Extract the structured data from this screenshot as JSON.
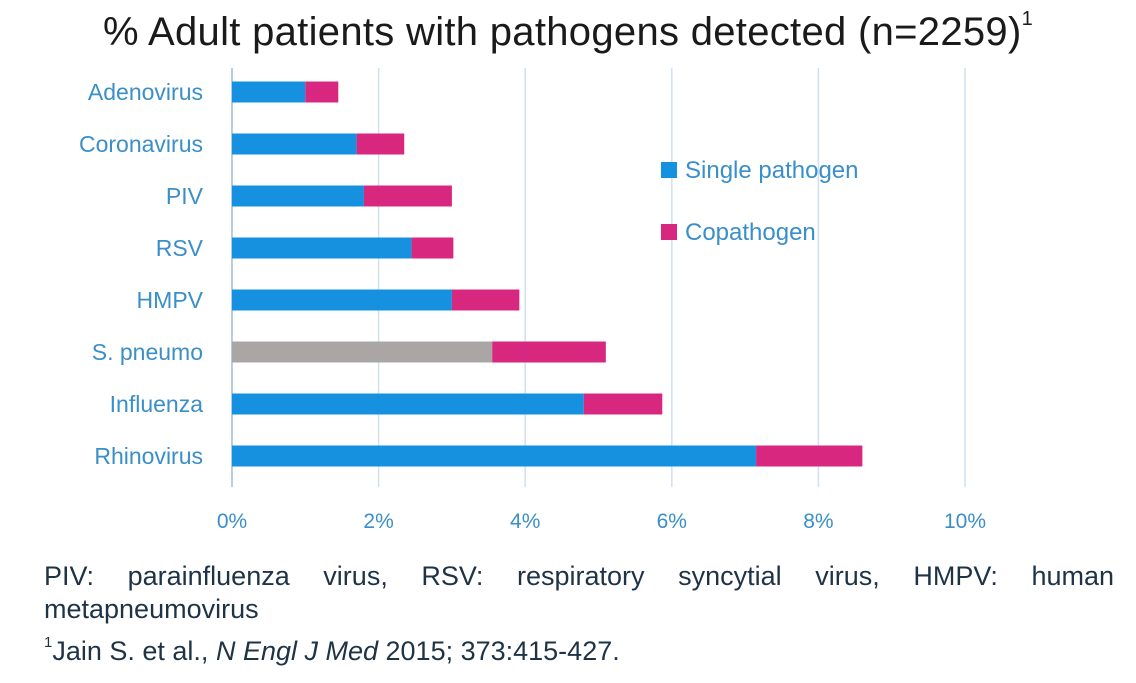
{
  "title": {
    "text": "% Adult patients with pathogens detected (n=2259)",
    "superscript": "1"
  },
  "colors": {
    "single": "#1591df",
    "copathogen": "#d8277f",
    "highlight_single": "#aaa6a6",
    "grid": "#cfe1ef",
    "label": "#3a8fc9"
  },
  "legend": {
    "placement": "right-upper",
    "items": [
      {
        "label": "Single pathogen",
        "color": "#1591df"
      },
      {
        "label": "Copathogen",
        "color": "#d8277f"
      }
    ]
  },
  "chart_data": {
    "type": "bar",
    "orientation": "horizontal",
    "stacked": true,
    "categories": [
      "Adenovirus",
      "Coronavirus",
      "PIV",
      "RSV",
      "HMPV",
      "S. pneumo",
      "Influenza",
      "Rhinovirus"
    ],
    "series": [
      {
        "name": "Single pathogen",
        "values": [
          1.0,
          1.7,
          1.8,
          2.45,
          3.0,
          3.55,
          4.8,
          7.15
        ]
      },
      {
        "name": "Copathogen",
        "values": [
          0.45,
          0.65,
          1.2,
          0.57,
          0.92,
          1.55,
          1.07,
          1.45
        ]
      }
    ],
    "highlight": {
      "category": "S. pneumo",
      "series": "Single pathogen",
      "color": "#aaa6a6"
    },
    "x_ticks": [
      "0%",
      "2%",
      "4%",
      "6%",
      "8%",
      "10%"
    ],
    "xlim": [
      0,
      10
    ],
    "grid": "vertical",
    "xlabel": "",
    "ylabel": ""
  },
  "footnotes": {
    "abbreviations": "PIV: parainfluenza virus, RSV: respiratory syncytial virus, HMPV: human metapneumovirus",
    "reference_marker": "1",
    "reference_authors": "Jain S. et al., ",
    "reference_journal": "N Engl J Med",
    "reference_details": " 2015; 373:415-427."
  }
}
